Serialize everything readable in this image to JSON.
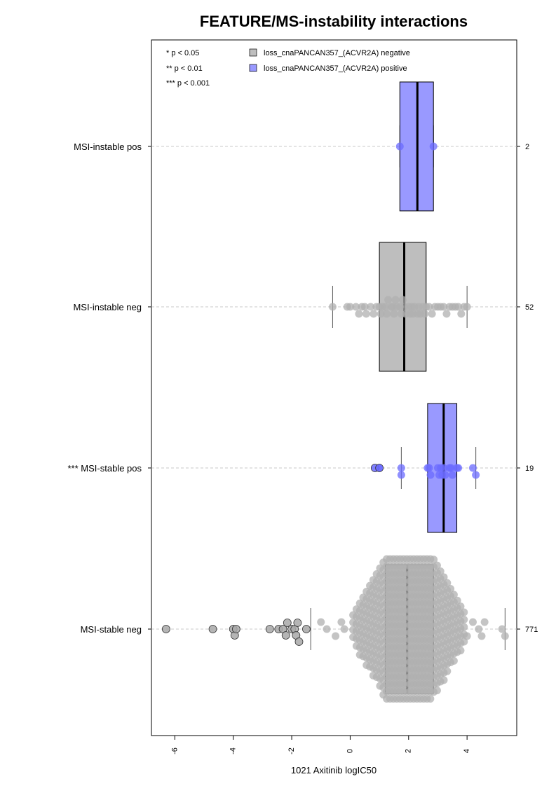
{
  "chart_data": {
    "type": "box",
    "title": "FEATURE/MS-instability interactions",
    "xlabel": "1021 Axitinib logIC50",
    "xlim": [
      -6.8,
      5.7
    ],
    "x_ticks": [
      -6,
      -4,
      -2,
      0,
      2,
      4
    ],
    "x_tick_labels": [
      "-6",
      "-4",
      "-2",
      "0",
      "2",
      "4"
    ],
    "significance_legend": [
      "* p < 0.05",
      "** p < 0.01",
      "*** p < 0.001"
    ],
    "legend": {
      "placement": "top",
      "entries": [
        {
          "label": "loss_cnaPANCAN357_(ACVR2A) negative",
          "color": "#bebebe"
        },
        {
          "label": "loss_cnaPANCAN357_(ACVR2A) positive",
          "color": "#9999ff"
        }
      ]
    },
    "colors": {
      "negative_box": "#bebebe",
      "positive_box": "#9999ff",
      "negative_points": "#b0b0b0",
      "positive_points": "#6b6bff",
      "gridline": "#c8c8c8"
    },
    "groups": [
      {
        "label": "MSI-instable pos",
        "count": "2",
        "status": "positive",
        "box": {
          "min": 1.7,
          "q1": 1.7,
          "median": 2.3,
          "q3": 2.85,
          "max": 2.85
        },
        "points": [
          1.7,
          2.85
        ],
        "outliers": []
      },
      {
        "label": "MSI-instable neg",
        "count": "52",
        "status": "negative",
        "box": {
          "min": -0.6,
          "q1": 1.0,
          "median": 1.85,
          "q3": 2.6,
          "max": 4.0
        },
        "points": [
          -0.6,
          -0.1,
          0.0,
          0.2,
          0.3,
          0.4,
          0.5,
          0.55,
          0.7,
          0.8,
          0.9,
          1.0,
          1.05,
          1.1,
          1.2,
          1.25,
          1.3,
          1.4,
          1.45,
          1.5,
          1.55,
          1.6,
          1.7,
          1.75,
          1.8,
          1.85,
          1.9,
          2.0,
          2.05,
          2.1,
          2.15,
          2.2,
          2.3,
          2.35,
          2.4,
          2.5,
          2.55,
          2.6,
          2.7,
          2.8,
          2.9,
          3.0,
          3.1,
          3.2,
          3.3,
          3.4,
          3.5,
          3.6,
          3.7,
          3.8,
          3.9,
          4.0
        ],
        "outliers": []
      },
      {
        "label": "*** MSI-stable pos",
        "count": "19",
        "status": "positive",
        "box": {
          "min": 1.75,
          "q1": 2.65,
          "median": 3.2,
          "q3": 3.65,
          "max": 4.3
        },
        "points": [
          1.0,
          1.75,
          1.75,
          2.65,
          2.7,
          2.75,
          3.0,
          3.05,
          3.1,
          3.15,
          3.2,
          3.25,
          3.4,
          3.45,
          3.5,
          3.65,
          3.7,
          4.2,
          4.3
        ],
        "outliers": [
          0.85,
          1.0
        ]
      },
      {
        "label": "MSI-stable neg",
        "count": "771",
        "status": "negative",
        "box": {
          "min": -1.35,
          "q1": 1.2,
          "median": 1.95,
          "q3": 2.85,
          "max": 5.3
        },
        "points": [],
        "outliers": [
          -6.3,
          -4.7,
          -4.0,
          -3.95,
          -3.9,
          -2.75,
          -2.45,
          -2.3,
          -2.2,
          -2.15,
          -2.0,
          -1.9,
          -1.85,
          -1.8,
          -1.75,
          -1.5
        ]
      }
    ]
  }
}
